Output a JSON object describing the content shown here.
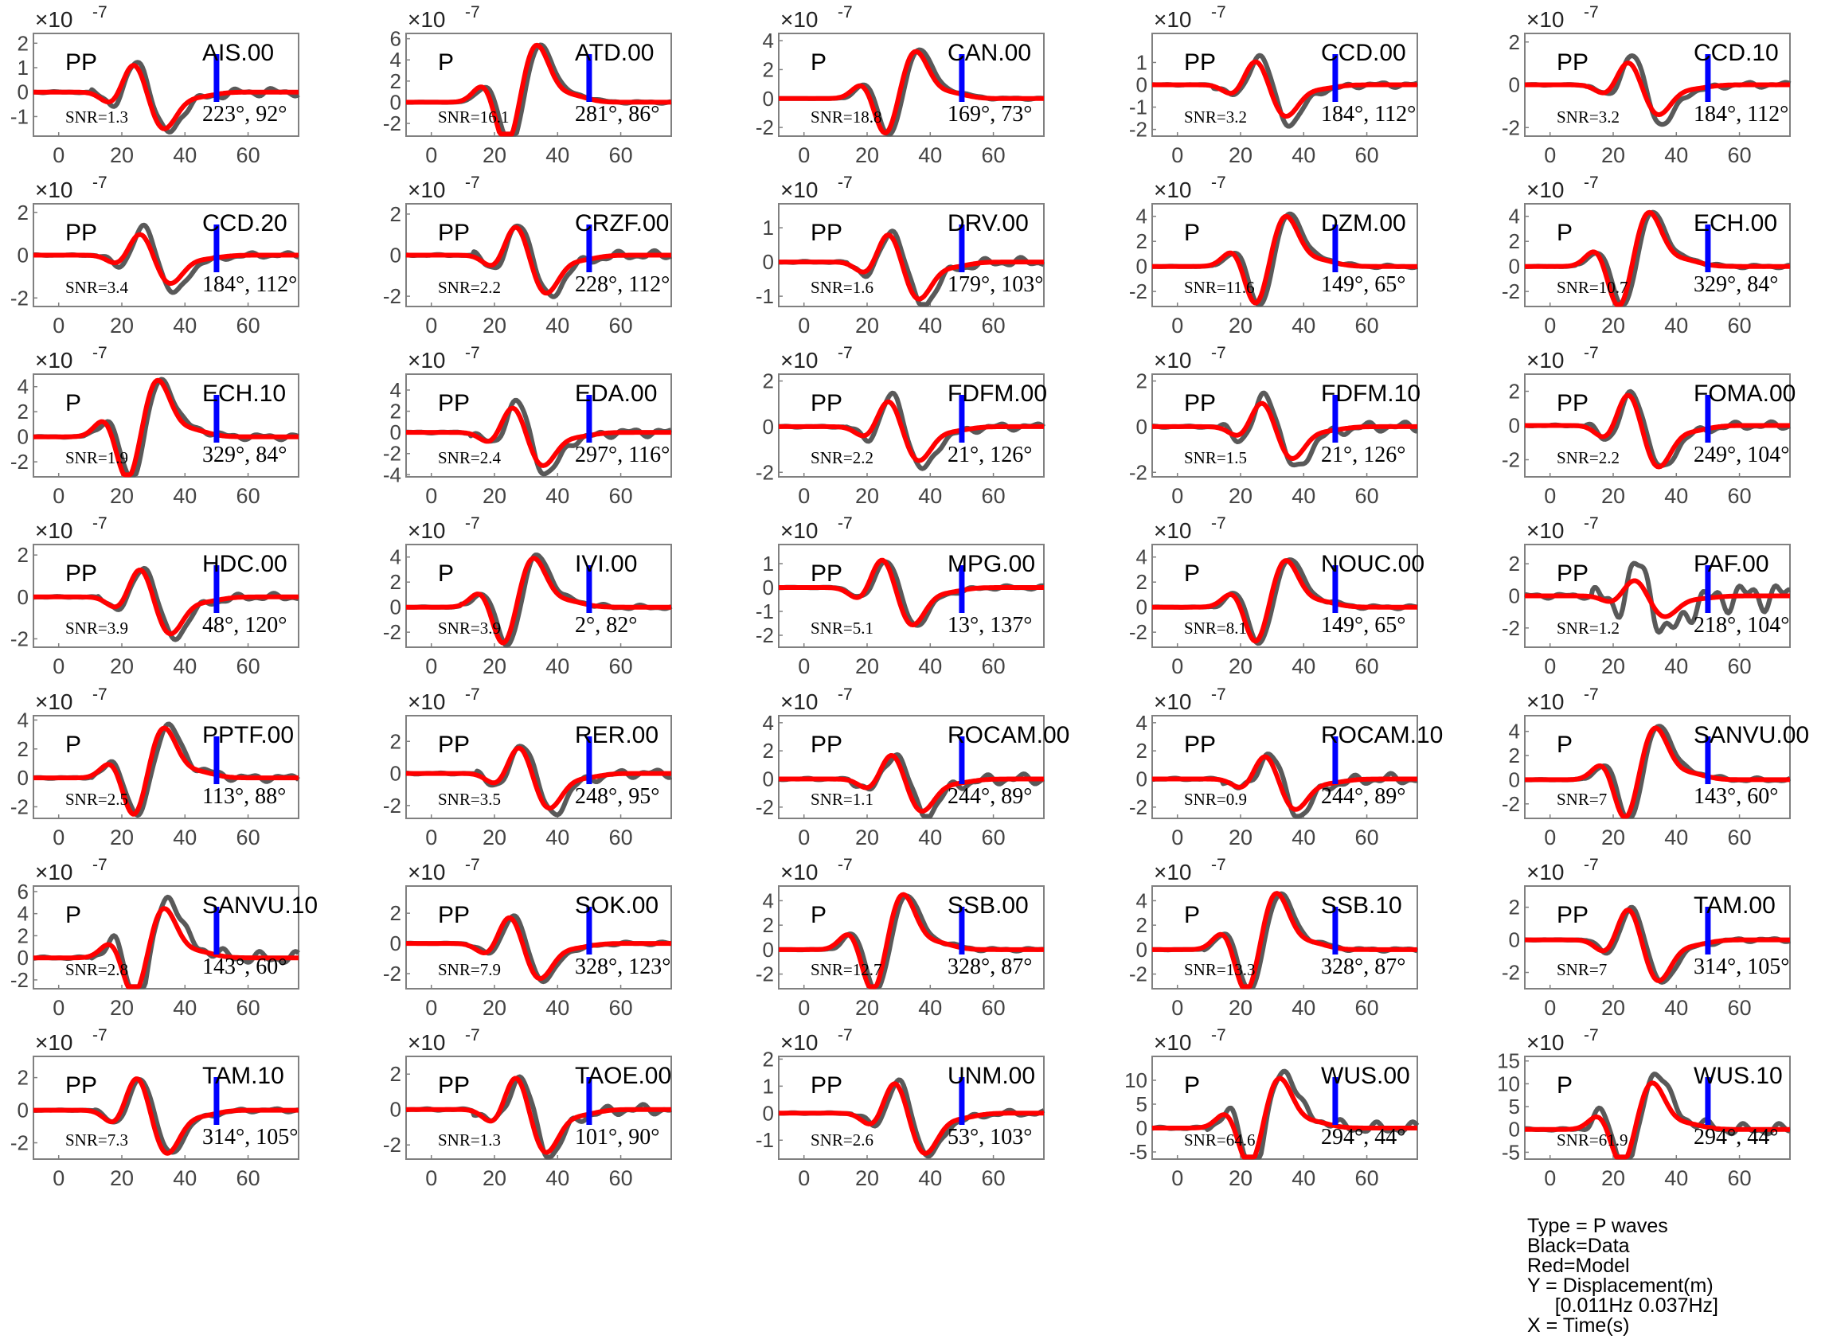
{
  "chart_data": {
    "type": "line",
    "series_names": [
      "Data",
      "Model"
    ],
    "series_colors": {
      "Data": "#595959",
      "Model": "#ff0000",
      "marker": "#0000ff"
    },
    "axis_color": "#808080",
    "xlim": [
      -8,
      76
    ],
    "xticks": [
      0,
      20,
      40,
      60
    ],
    "exponent_label": "×10",
    "exponent_power": "-7",
    "marker_time": 50,
    "panels": [
      {
        "station": "AIS.00",
        "phase": "PP",
        "snr": "SNR=1.3",
        "angles": "223°, 92°",
        "ylim": [
          -1.8,
          2.4
        ],
        "yticks": [
          -1,
          0,
          1,
          2
        ],
        "arrival": 24,
        "pol": -1,
        "amp": 1.7,
        "model_scale": 0.9,
        "noise": 0.3
      },
      {
        "station": "ATD.00",
        "phase": "P",
        "snr": "SNR=16.1",
        "angles": "281°, 86°",
        "ylim": [
          -3.2,
          6.5
        ],
        "yticks": [
          -2,
          0,
          2,
          4,
          6
        ],
        "arrival": 24,
        "pol": 1,
        "amp": 5.5,
        "model_scale": 1.0,
        "noise": 0.05
      },
      {
        "station": "CAN.00",
        "phase": "P",
        "snr": "SNR=18.8",
        "angles": "169°, 73°",
        "ylim": [
          -2.6,
          4.5
        ],
        "yticks": [
          -2,
          0,
          2,
          4
        ],
        "arrival": 26,
        "pol": 1,
        "amp": 3.5,
        "model_scale": 0.95,
        "noise": 0.05
      },
      {
        "station": "CCD.00",
        "phase": "PP",
        "snr": "SNR=3.2",
        "angles": "184°, 112°",
        "ylim": [
          -2.3,
          2.3
        ],
        "yticks": [
          -2,
          -1,
          0,
          1
        ],
        "arrival": 25,
        "pol": -1,
        "amp": 1.8,
        "model_scale": 0.8,
        "noise": 0.2
      },
      {
        "station": "CCD.10",
        "phase": "PP",
        "snr": "SNR=3.2",
        "angles": "184°, 112°",
        "ylim": [
          -2.4,
          2.4
        ],
        "yticks": [
          -2,
          0,
          2
        ],
        "arrival": 25,
        "pol": -1,
        "amp": 1.9,
        "model_scale": 0.75,
        "noise": 0.2
      },
      {
        "station": "CCD.20",
        "phase": "PP",
        "snr": "SNR=3.4",
        "angles": "184°, 112°",
        "ylim": [
          -2.4,
          2.4
        ],
        "yticks": [
          -2,
          0,
          2
        ],
        "arrival": 26,
        "pol": -1,
        "amp": 1.8,
        "model_scale": 0.75,
        "noise": 0.2
      },
      {
        "station": "CRZF.00",
        "phase": "PP",
        "snr": "SNR=2.2",
        "angles": "228°, 112°",
        "ylim": [
          -2.5,
          2.5
        ],
        "yticks": [
          -2,
          0,
          2
        ],
        "arrival": 27,
        "pol": -1,
        "amp": 2.1,
        "model_scale": 0.9,
        "noise": 0.3
      },
      {
        "station": "DRV.00",
        "phase": "PP",
        "snr": "SNR=1.6",
        "angles": "179°, 103°",
        "ylim": [
          -1.3,
          1.7
        ],
        "yticks": [
          -1,
          0,
          1
        ],
        "arrival": 27,
        "pol": -1,
        "amp": 1.3,
        "model_scale": 0.85,
        "noise": 0.3
      },
      {
        "station": "DZM.00",
        "phase": "P",
        "snr": "SNR=11.6",
        "angles": "149°, 65°",
        "ylim": [
          -3.2,
          5
        ],
        "yticks": [
          -2,
          0,
          2,
          4
        ],
        "arrival": 25,
        "pol": 1,
        "amp": 4.3,
        "model_scale": 0.95,
        "noise": 0.08
      },
      {
        "station": "ECH.00",
        "phase": "P",
        "snr": "SNR=10.7",
        "angles": "329°, 84°",
        "ylim": [
          -3.2,
          5
        ],
        "yticks": [
          -2,
          0,
          2,
          4
        ],
        "arrival": 22,
        "pol": 1,
        "amp": 4.4,
        "model_scale": 1.0,
        "noise": 0.08
      },
      {
        "station": "ECH.10",
        "phase": "P",
        "snr": "SNR=1.9",
        "angles": "329°, 84°",
        "ylim": [
          -3.2,
          5
        ],
        "yticks": [
          -2,
          0,
          2,
          4
        ],
        "arrival": 22,
        "pol": 1,
        "amp": 4.6,
        "model_scale": 1.0,
        "noise": 0.15
      },
      {
        "station": "EDA.00",
        "phase": "PP",
        "snr": "SNR=2.4",
        "angles": "297°, 116°",
        "ylim": [
          -4.2,
          5.5
        ],
        "yticks": [
          -4,
          -2,
          0,
          2,
          4
        ],
        "arrival": 26,
        "pol": -1,
        "amp": 4.0,
        "model_scale": 0.8,
        "noise": 0.3
      },
      {
        "station": "FDFM.00",
        "phase": "PP",
        "snr": "SNR=2.2",
        "angles": "21°, 126°",
        "ylim": [
          -2.2,
          2.3
        ],
        "yticks": [
          -2,
          0,
          2
        ],
        "arrival": 27,
        "pol": -1,
        "amp": 1.9,
        "model_scale": 0.8,
        "noise": 0.25
      },
      {
        "station": "FDFM.10",
        "phase": "PP",
        "snr": "SNR=1.5",
        "angles": "21°, 126°",
        "ylim": [
          -2.2,
          2.3
        ],
        "yticks": [
          -2,
          0,
          2
        ],
        "arrival": 27,
        "pol": -1,
        "amp": 1.9,
        "model_scale": 0.75,
        "noise": 0.35
      },
      {
        "station": "FOMA.00",
        "phase": "PP",
        "snr": "SNR=2.2",
        "angles": "249°, 104°",
        "ylim": [
          -3,
          3
        ],
        "yticks": [
          -2,
          0,
          2
        ],
        "arrival": 25,
        "pol": -1,
        "amp": 2.6,
        "model_scale": 0.95,
        "noise": 0.25
      },
      {
        "station": "HDC.00",
        "phase": "PP",
        "snr": "SNR=3.9",
        "angles": "48°, 120°",
        "ylim": [
          -2.4,
          2.5
        ],
        "yticks": [
          -2,
          0,
          2
        ],
        "arrival": 26,
        "pol": -1,
        "amp": 2.0,
        "model_scale": 0.9,
        "noise": 0.25
      },
      {
        "station": "IVI.00",
        "phase": "P",
        "snr": "SNR=3.9",
        "angles": "2°, 82°",
        "ylim": [
          -3.2,
          5
        ],
        "yticks": [
          -2,
          0,
          2,
          4
        ],
        "arrival": 23,
        "pol": 1,
        "amp": 4.2,
        "model_scale": 0.95,
        "noise": 0.12
      },
      {
        "station": "MPG.00",
        "phase": "PP",
        "snr": "SNR=5.1",
        "angles": "13°, 137°",
        "ylim": [
          -2.5,
          1.8
        ],
        "yticks": [
          -2,
          -1,
          0,
          1
        ],
        "arrival": 25,
        "pol": -1,
        "amp": 1.6,
        "model_scale": 1.0,
        "noise": 0.15
      },
      {
        "station": "NOUC.00",
        "phase": "P",
        "snr": "SNR=8.1",
        "angles": "149°, 65°",
        "ylim": [
          -3.2,
          5
        ],
        "yticks": [
          -2,
          0,
          2,
          4
        ],
        "arrival": 25,
        "pol": 1,
        "amp": 4.0,
        "model_scale": 0.95,
        "noise": 0.1
      },
      {
        "station": "PAF.00",
        "phase": "PP",
        "snr": "SNR=1.2",
        "angles": "218°, 104°",
        "ylim": [
          -3.2,
          3.2
        ],
        "yticks": [
          -2,
          0,
          2
        ],
        "arrival": 27,
        "pol": -1,
        "amp": 2.4,
        "model_scale": 0.55,
        "noise": 1.2
      },
      {
        "station": "PPTF.00",
        "phase": "P",
        "snr": "SNR=2.5",
        "angles": "113°, 88°",
        "ylim": [
          -2.8,
          4.3
        ],
        "yticks": [
          -2,
          0,
          2,
          4
        ],
        "arrival": 24,
        "pol": 1,
        "amp": 3.7,
        "model_scale": 0.95,
        "noise": 0.2
      },
      {
        "station": "RER.00",
        "phase": "PP",
        "snr": "SNR=3.5",
        "angles": "248°, 95°",
        "ylim": [
          -2.8,
          3.6
        ],
        "yticks": [
          -2,
          0,
          2
        ],
        "arrival": 28,
        "pol": -1,
        "amp": 2.6,
        "model_scale": 0.85,
        "noise": 0.3
      },
      {
        "station": "ROCAM.00",
        "phase": "PP",
        "snr": "SNR=1.1",
        "angles": "244°, 89°",
        "ylim": [
          -2.8,
          4.5
        ],
        "yticks": [
          -2,
          0,
          2,
          4
        ],
        "arrival": 28,
        "pol": -1,
        "amp": 2.6,
        "model_scale": 0.9,
        "noise": 0.45
      },
      {
        "station": "ROCAM.10",
        "phase": "PP",
        "snr": "SNR=0.9",
        "angles": "244°, 89°",
        "ylim": [
          -2.8,
          4.5
        ],
        "yticks": [
          -2,
          0,
          2,
          4
        ],
        "arrival": 28,
        "pol": -1,
        "amp": 2.6,
        "model_scale": 0.85,
        "noise": 0.45
      },
      {
        "station": "SANVU.00",
        "phase": "P",
        "snr": "SNR=7",
        "angles": "143°, 60°",
        "ylim": [
          -3.2,
          5.3
        ],
        "yticks": [
          -2,
          0,
          2,
          4
        ],
        "arrival": 24,
        "pol": 1,
        "amp": 4.6,
        "model_scale": 0.95,
        "noise": 0.1
      },
      {
        "station": "SANVU.10",
        "phase": "P",
        "snr": "SNR=2.8",
        "angles": "143°, 60°",
        "ylim": [
          -2.8,
          6.5
        ],
        "yticks": [
          -2,
          0,
          2,
          4,
          6
        ],
        "arrival": 24,
        "pol": 1,
        "amp": 5.7,
        "model_scale": 0.8,
        "noise": 0.3
      },
      {
        "station": "SOK.00",
        "phase": "PP",
        "snr": "SNR=7.9",
        "angles": "328°, 123°",
        "ylim": [
          -3,
          3.8
        ],
        "yticks": [
          -2,
          0,
          2
        ],
        "arrival": 25,
        "pol": -1,
        "amp": 2.5,
        "model_scale": 0.95,
        "noise": 0.12
      },
      {
        "station": "SSB.00",
        "phase": "P",
        "snr": "SNR=12.7",
        "angles": "328°, 87°",
        "ylim": [
          -3.2,
          5.2
        ],
        "yticks": [
          -2,
          0,
          2,
          4
        ],
        "arrival": 22,
        "pol": 1,
        "amp": 4.6,
        "model_scale": 1.0,
        "noise": 0.08
      },
      {
        "station": "SSB.10",
        "phase": "P",
        "snr": "SNR=13.3",
        "angles": "328°, 87°",
        "ylim": [
          -3.2,
          5.2
        ],
        "yticks": [
          -2,
          0,
          2,
          4
        ],
        "arrival": 22,
        "pol": 1,
        "amp": 4.7,
        "model_scale": 1.0,
        "noise": 0.08
      },
      {
        "station": "TAM.00",
        "phase": "PP",
        "snr": "SNR=7",
        "angles": "314°, 105°",
        "ylim": [
          -3,
          3.3
        ],
        "yticks": [
          -2,
          0,
          2
        ],
        "arrival": 25,
        "pol": -1,
        "amp": 2.7,
        "model_scale": 0.95,
        "noise": 0.12
      },
      {
        "station": "TAM.10",
        "phase": "PP",
        "snr": "SNR=7.3",
        "angles": "314°, 105°",
        "ylim": [
          -3,
          3.3
        ],
        "yticks": [
          -2,
          0,
          2
        ],
        "arrival": 25,
        "pol": -1,
        "amp": 2.7,
        "model_scale": 1.0,
        "noise": 0.12
      },
      {
        "station": "TAOE.00",
        "phase": "PP",
        "snr": "SNR=1.3",
        "angles": "101°, 90°",
        "ylim": [
          -2.8,
          3
        ],
        "yticks": [
          -2,
          0,
          2
        ],
        "arrival": 27,
        "pol": -1,
        "amp": 2.6,
        "model_scale": 0.95,
        "noise": 0.35
      },
      {
        "station": "UNM.00",
        "phase": "PP",
        "snr": "SNR=2.6",
        "angles": "53°, 103°",
        "ylim": [
          -1.7,
          2.1
        ],
        "yticks": [
          -1,
          0,
          1,
          2
        ],
        "arrival": 29,
        "pol": -1,
        "amp": 1.6,
        "model_scale": 0.95,
        "noise": 0.2
      },
      {
        "station": "WUS.00",
        "phase": "P",
        "snr": "SNR=64.6",
        "angles": "294°, 44°",
        "ylim": [
          -6.5,
          15
        ],
        "yticks": [
          -5,
          0,
          5,
          10
        ],
        "arrival": 23,
        "pol": 1,
        "amp": 12.5,
        "model_scale": 0.85,
        "noise": 0.3
      },
      {
        "station": "WUS.10",
        "phase": "P",
        "snr": "SNR=61.9",
        "angles": "294°, 44°",
        "ylim": [
          -6.5,
          16
        ],
        "yticks": [
          -5,
          0,
          5,
          10,
          15
        ],
        "arrival": 23,
        "pol": 1,
        "amp": 13,
        "model_scale": 0.8,
        "noise": 0.3
      }
    ]
  },
  "notes": {
    "line1": "Type = P waves",
    "line2": "Black=Data",
    "line3": "Red=Model",
    "line4": "Y = Displacement(m)",
    "line5": "     [0.011Hz 0.037Hz]",
    "line6": "X = Time(s)"
  }
}
